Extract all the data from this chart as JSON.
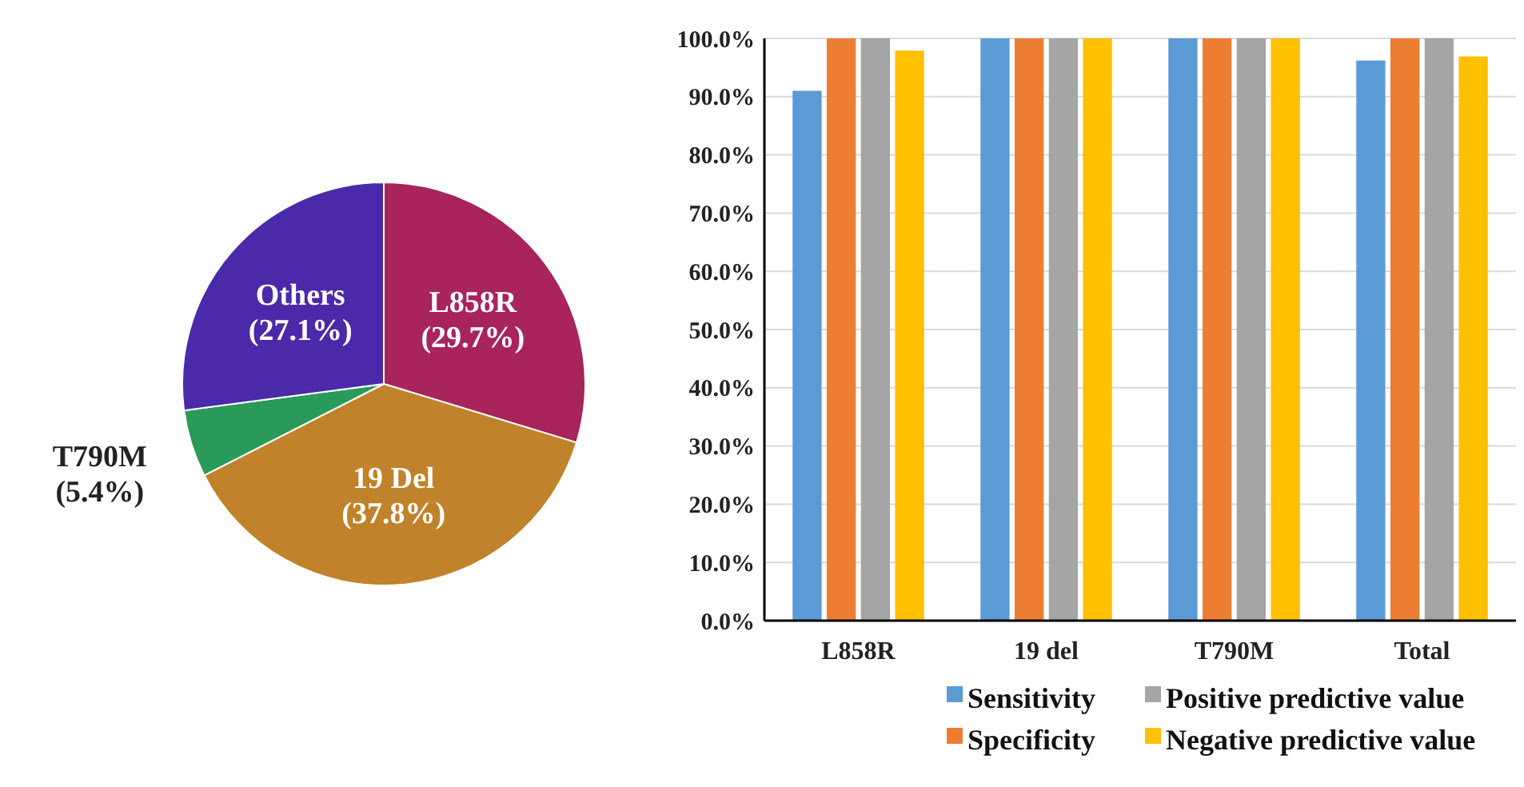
{
  "chart_data": [
    {
      "type": "pie",
      "categories": [
        "L858R",
        "19 Del",
        "T790M",
        "Others"
      ],
      "values": [
        29.7,
        37.8,
        5.4,
        27.1
      ],
      "colors": [
        "#a8245a",
        "#c0822a",
        "#2a9a5a",
        "#4a2aa8"
      ],
      "value_labels": [
        "(29.7%)",
        "(37.8%)",
        "(5.4%)",
        "(27.1%)"
      ]
    },
    {
      "type": "bar",
      "categories": [
        "L858R",
        "19 del",
        "T790M",
        "Total"
      ],
      "series": [
        {
          "name": "Sensitivity",
          "color": "#5b9bd5",
          "values": [
            91.0,
            100,
            100,
            96.2
          ]
        },
        {
          "name": "Specificity",
          "color": "#ed7d31",
          "values": [
            100,
            100,
            100,
            100
          ]
        },
        {
          "name": "Positive predictive value",
          "color": "#a5a5a5",
          "values": [
            100,
            100,
            100,
            100
          ]
        },
        {
          "name": "Negative predictive value",
          "color": "#ffc000",
          "values": [
            97.9,
            100,
            100,
            96.9
          ]
        }
      ],
      "ylim": [
        0,
        100
      ],
      "yticks": [
        {
          "value": 0,
          "label": "0.0%"
        },
        {
          "value": 10,
          "label": "10.0%"
        },
        {
          "value": 20,
          "label": "20.0%"
        },
        {
          "value": 30,
          "label": "30.0%"
        },
        {
          "value": 40,
          "label": "40.0%"
        },
        {
          "value": 50,
          "label": "50.0%"
        },
        {
          "value": 60,
          "label": "60.0%"
        },
        {
          "value": 70,
          "label": "70.0%"
        },
        {
          "value": 80,
          "label": "80.0%"
        },
        {
          "value": 90,
          "label": "90.0%"
        },
        {
          "value": 100,
          "label": "100.0%"
        }
      ],
      "grid": "y",
      "legend": "bottom"
    }
  ]
}
